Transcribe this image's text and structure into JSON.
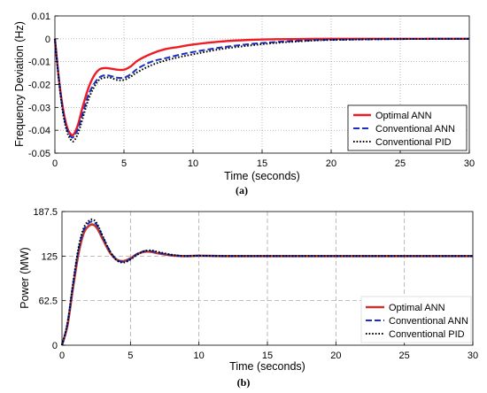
{
  "chart_data": [
    {
      "type": "line",
      "caption": "(a)",
      "xlabel": "Time (seconds)",
      "ylabel": "Frequency Deviation (Hz)",
      "xlim": [
        0,
        30
      ],
      "ylim": [
        -0.05,
        0.01
      ],
      "xticks": [
        0,
        5,
        10,
        15,
        20,
        25,
        30
      ],
      "xtick_labels": [
        "0",
        "5",
        "10",
        "15",
        "20",
        "25",
        "30"
      ],
      "yticks": [
        0.01,
        0,
        -0.01,
        -0.02,
        -0.03,
        -0.04,
        -0.05
      ],
      "ytick_labels": [
        "0.01",
        "0",
        "-0.01",
        "-0.02",
        "-0.03",
        "-0.04",
        "-0.05"
      ],
      "grid": "dotted",
      "legend_position": "bottom-right",
      "series": [
        {
          "name": "Optimal ANN",
          "color": "#ee1c25",
          "style": "solid",
          "x": [
            0,
            0.3,
            0.6,
            0.9,
            1.2,
            1.4,
            1.7,
            2.0,
            2.4,
            2.8,
            3.2,
            3.6,
            4.0,
            4.5,
            5.0,
            5.5,
            6.0,
            7.0,
            8.0,
            9.0,
            10.0,
            12.0,
            14.0,
            16.0,
            18.0,
            20.0,
            25.0,
            30.0
          ],
          "y": [
            0,
            -0.018,
            -0.031,
            -0.039,
            -0.042,
            -0.0415,
            -0.037,
            -0.03,
            -0.022,
            -0.0165,
            -0.0135,
            -0.0128,
            -0.013,
            -0.0135,
            -0.0135,
            -0.012,
            -0.0095,
            -0.0065,
            -0.0045,
            -0.0035,
            -0.0025,
            -0.0012,
            -0.0005,
            -0.0002,
            -0.0001,
            0,
            0,
            0
          ]
        },
        {
          "name": "Conventional ANN",
          "color": "#1a2fc4",
          "style": "dashed",
          "x": [
            0,
            0.3,
            0.6,
            0.9,
            1.2,
            1.4,
            1.7,
            2.0,
            2.4,
            2.8,
            3.2,
            3.6,
            4.0,
            4.5,
            5.0,
            5.5,
            6.0,
            7.0,
            8.0,
            9.0,
            10.0,
            12.0,
            14.0,
            16.0,
            18.0,
            20.0,
            25.0,
            30.0
          ],
          "y": [
            0,
            -0.018,
            -0.032,
            -0.04,
            -0.043,
            -0.0425,
            -0.039,
            -0.033,
            -0.025,
            -0.02,
            -0.017,
            -0.016,
            -0.0162,
            -0.017,
            -0.017,
            -0.0155,
            -0.013,
            -0.01,
            -0.0085,
            -0.007,
            -0.0058,
            -0.0038,
            -0.0024,
            -0.0014,
            -0.0008,
            -0.0004,
            -0.0001,
            0
          ]
        },
        {
          "name": "Conventional PID",
          "color": "#000000",
          "style": "dotted",
          "x": [
            0,
            0.3,
            0.6,
            0.9,
            1.2,
            1.4,
            1.7,
            2.0,
            2.4,
            2.8,
            3.2,
            3.6,
            4.0,
            4.5,
            5.0,
            5.5,
            6.0,
            7.0,
            8.0,
            9.0,
            10.0,
            12.0,
            14.0,
            16.0,
            18.0,
            20.0,
            25.0,
            30.0
          ],
          "y": [
            0,
            -0.019,
            -0.033,
            -0.041,
            -0.0445,
            -0.0445,
            -0.041,
            -0.035,
            -0.027,
            -0.0215,
            -0.018,
            -0.017,
            -0.017,
            -0.018,
            -0.018,
            -0.0165,
            -0.0145,
            -0.0115,
            -0.0095,
            -0.008,
            -0.0068,
            -0.0045,
            -0.003,
            -0.0018,
            -0.001,
            -0.0005,
            -0.0001,
            0
          ]
        }
      ]
    },
    {
      "type": "line",
      "caption": "(b)",
      "xlabel": "Time (seconds)",
      "ylabel": "Power (MW)",
      "xlim": [
        0,
        30
      ],
      "ylim": [
        0,
        187.5
      ],
      "xticks": [
        0,
        5,
        10,
        15,
        20,
        25,
        30
      ],
      "xtick_labels": [
        "0",
        "5",
        "10",
        "15",
        "20",
        "25",
        "30"
      ],
      "yticks": [
        187.5,
        125,
        62.5,
        0
      ],
      "ytick_labels": [
        "187.5",
        "125",
        "62.5",
        "0"
      ],
      "grid": "dashed",
      "legend_position": "bottom-right",
      "series": [
        {
          "name": "Optimal ANN",
          "color": "#c0392b",
          "style": "solid",
          "x": [
            0,
            0.4,
            0.8,
            1.2,
            1.6,
            2.0,
            2.3,
            2.6,
            3.0,
            3.5,
            4.0,
            4.5,
            5.0,
            5.5,
            6.0,
            6.5,
            7.0,
            8.0,
            9.0,
            10.0,
            12.0,
            15.0,
            20.0,
            25.0,
            30.0
          ],
          "y": [
            0,
            28,
            80,
            128,
            158,
            168,
            169,
            163,
            148,
            130,
            120,
            118,
            122,
            128,
            131,
            131,
            129,
            126,
            125,
            125.5,
            125,
            125,
            125,
            125,
            125
          ],
          "width": 2.6
        },
        {
          "name": "Conventional ANN",
          "color": "#1a2fc4",
          "style": "dashed",
          "x": [
            0,
            0.4,
            0.8,
            1.2,
            1.6,
            2.0,
            2.3,
            2.6,
            3.0,
            3.5,
            4.0,
            4.5,
            5.0,
            5.5,
            6.0,
            6.5,
            7.0,
            8.0,
            9.0,
            10.0,
            12.0,
            15.0,
            20.0,
            25.0,
            30.0
          ],
          "y": [
            0,
            30,
            84,
            133,
            162,
            172,
            173,
            167,
            151,
            132,
            120,
            117,
            121,
            128,
            132,
            132,
            130,
            126.5,
            125,
            125.5,
            125,
            125,
            125,
            125,
            125
          ],
          "width": 2.0
        },
        {
          "name": "Conventional PID",
          "color": "#000000",
          "style": "dotted",
          "x": [
            0,
            0.4,
            0.8,
            1.2,
            1.6,
            2.0,
            2.3,
            2.6,
            3.0,
            3.5,
            4.0,
            4.5,
            5.0,
            5.5,
            6.0,
            6.5,
            7.0,
            8.0,
            9.0,
            10.0,
            12.0,
            15.0,
            20.0,
            25.0,
            30.0
          ],
          "y": [
            0,
            31,
            86,
            136,
            165,
            175,
            176,
            169,
            152,
            132,
            119,
            116,
            120,
            127,
            132,
            133,
            131,
            127,
            125,
            125.5,
            125,
            125,
            125,
            125,
            125
          ],
          "width": 2.0
        }
      ]
    }
  ]
}
